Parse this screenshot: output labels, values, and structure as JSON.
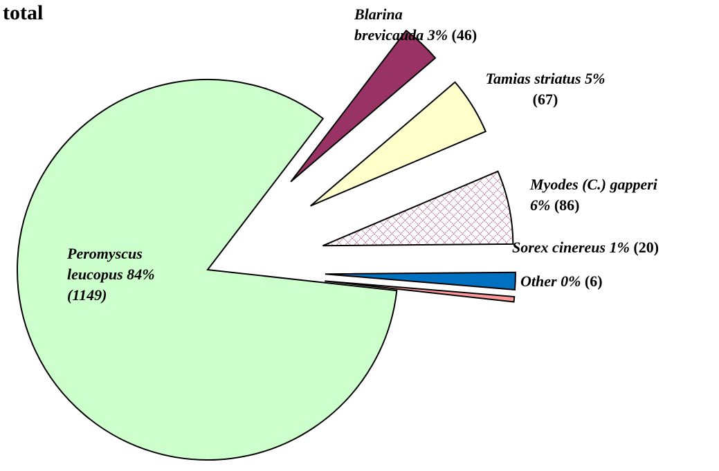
{
  "chart_data": {
    "type": "pie",
    "title": "total",
    "categories": [
      "Peromyscus leucopus",
      "Blarina brevicauda",
      "Tamias striatus",
      "Myodes (C.) gapperi",
      "Sorex cinereus",
      "Other"
    ],
    "values": [
      1149,
      46,
      67,
      86,
      20,
      6
    ],
    "value_labels": [
      "(1149)",
      "(46)",
      "(67)",
      "(86)",
      "(20)",
      "(6)"
    ],
    "percent_labels": [
      "84%",
      "3%",
      "5%",
      "6%",
      "1%",
      "0%"
    ],
    "colors": [
      "#ccffcc",
      "#993366",
      "#ffffcc",
      "#993366",
      "#0070c0",
      "#ff9999"
    ],
    "hatched": [
      false,
      false,
      false,
      true,
      false,
      false
    ]
  }
}
